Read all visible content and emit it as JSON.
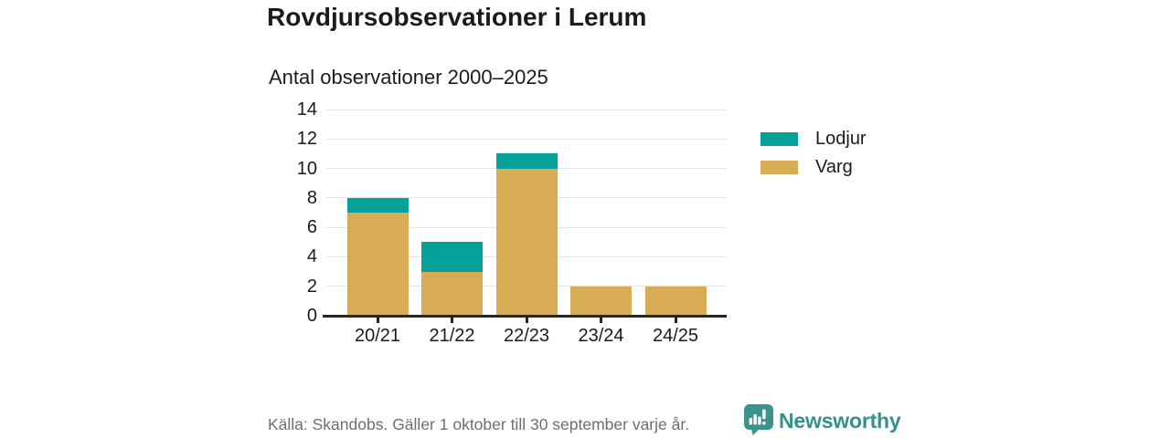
{
  "header": {
    "title": "Rovdjursobservationer i Lerum"
  },
  "chart_data": {
    "type": "bar",
    "stacked": true,
    "title": "Antal observationer 2000–2025",
    "categories": [
      "20/21",
      "21/22",
      "22/23",
      "23/24",
      "24/25"
    ],
    "series": [
      {
        "name": "Varg",
        "color": "#D8AB55",
        "values": [
          7,
          3,
          10,
          2,
          2
        ]
      },
      {
        "name": "Lodjur",
        "color": "#06A29A",
        "values": [
          1,
          2,
          1,
          0,
          0
        ]
      }
    ],
    "stack_totals": [
      8,
      5,
      11,
      2,
      2
    ],
    "ylim": [
      0,
      14
    ],
    "yticks": [
      0,
      2,
      4,
      6,
      8,
      10,
      12,
      14
    ],
    "grid": "horizontal",
    "legend_position": "right",
    "legend_order": [
      "Lodjur",
      "Varg"
    ]
  },
  "footer": {
    "source": "Källa: Skandobs. Gäller 1 oktober till 30 september varje år.",
    "brand": "Newsworthy",
    "brand_color": "#358F8B",
    "logo_icon": "newsworthy-speech-bubble-bar-chart-icon"
  },
  "colors": {
    "lodjur": "#06A29A",
    "varg": "#D8AB55",
    "axis": "#262626",
    "gridline": "#E4E4E4",
    "text": "#1B1B1B",
    "muted_text": "#6E6E6E"
  }
}
